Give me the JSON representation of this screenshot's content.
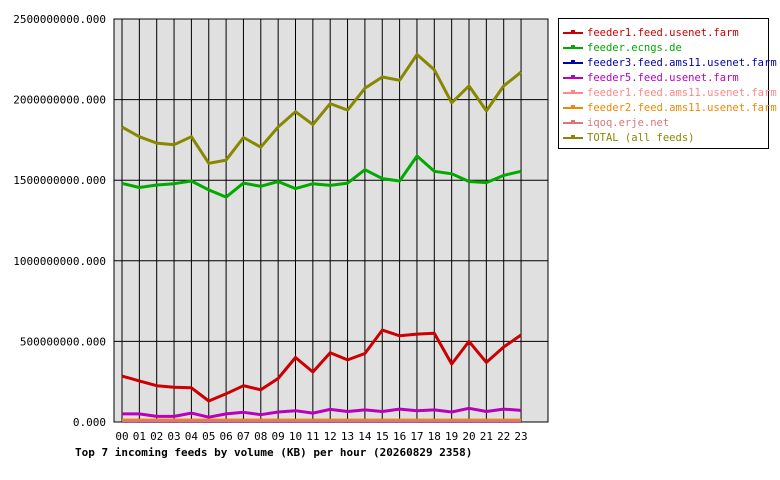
{
  "chart_data": {
    "type": "line",
    "title": "Top 7 incoming feeds by volume (KB) per hour (20260829 2358)",
    "xlabel": "",
    "ylabel": "",
    "categories": [
      "00",
      "01",
      "02",
      "03",
      "04",
      "05",
      "06",
      "07",
      "08",
      "09",
      "10",
      "11",
      "12",
      "13",
      "14",
      "15",
      "16",
      "17",
      "18",
      "19",
      "20",
      "21",
      "22",
      "23"
    ],
    "ylim": [
      0,
      2500000000
    ],
    "yticks": [
      "0.000",
      "500000000.000",
      "1000000000.000",
      "1500000000.000",
      "2000000000.000",
      "2500000000.000"
    ],
    "ytick_values": [
      0,
      500000000,
      1000000000,
      1500000000,
      2000000000,
      2500000000
    ],
    "grid": true,
    "legend_position": "right",
    "series": [
      {
        "name": "feeder1.feed.usenet.farm",
        "color": "#cc0000",
        "values": [
          285000000,
          255000000,
          225000000,
          215000000,
          212000000,
          130000000,
          175000000,
          225000000,
          200000000,
          270000000,
          400000000,
          310000000,
          430000000,
          385000000,
          425000000,
          570000000,
          535000000,
          545000000,
          550000000,
          360000000,
          500000000,
          370000000,
          465000000,
          540000000
        ]
      },
      {
        "name": "feeder.ecngs.de",
        "color": "#00aa00",
        "values": [
          1480000000,
          1455000000,
          1470000000,
          1478000000,
          1495000000,
          1440000000,
          1395000000,
          1482000000,
          1462000000,
          1492000000,
          1448000000,
          1478000000,
          1468000000,
          1482000000,
          1565000000,
          1510000000,
          1495000000,
          1650000000,
          1555000000,
          1540000000,
          1492000000,
          1485000000,
          1530000000,
          1555000000
        ]
      },
      {
        "name": "feeder3.feed.ams11.usenet.farm",
        "color": "#0000aa",
        "values": [
          3000000,
          3000000,
          3000000,
          3000000,
          3000000,
          3000000,
          3000000,
          3000000,
          3000000,
          3000000,
          3000000,
          3000000,
          3000000,
          3000000,
          3000000,
          3000000,
          3000000,
          3000000,
          3000000,
          3000000,
          3000000,
          3000000,
          3000000,
          3000000
        ]
      },
      {
        "name": "feeder5.feed.usenet.farm",
        "color": "#bb00bb",
        "values": [
          50000000,
          50000000,
          35000000,
          35000000,
          55000000,
          30000000,
          50000000,
          60000000,
          45000000,
          62000000,
          70000000,
          55000000,
          78000000,
          65000000,
          75000000,
          65000000,
          80000000,
          70000000,
          75000000,
          62000000,
          85000000,
          65000000,
          80000000,
          72000000
        ]
      },
      {
        "name": "feeder1.feed.ams11.usenet.farm",
        "color": "#ff8888",
        "values": [
          8000000,
          8000000,
          8000000,
          8000000,
          8000000,
          8000000,
          8000000,
          8000000,
          8000000,
          8000000,
          8000000,
          8000000,
          8000000,
          8000000,
          8000000,
          8000000,
          8000000,
          8000000,
          8000000,
          8000000,
          8000000,
          8000000,
          8000000,
          8000000
        ]
      },
      {
        "name": "feeder2.feed.ams11.usenet.farm",
        "color": "#ee8800",
        "values": [
          12000000,
          12000000,
          12000000,
          12000000,
          12000000,
          12000000,
          12000000,
          12000000,
          12000000,
          12000000,
          12000000,
          12000000,
          12000000,
          12000000,
          12000000,
          12000000,
          12000000,
          12000000,
          12000000,
          12000000,
          12000000,
          12000000,
          12000000,
          12000000
        ]
      },
      {
        "name": "iqoq.erje.net",
        "color": "#dd7777",
        "values": [
          5000000,
          5000000,
          5000000,
          5000000,
          5000000,
          5000000,
          5000000,
          5000000,
          5000000,
          5000000,
          5000000,
          5000000,
          5000000,
          5000000,
          5000000,
          5000000,
          5000000,
          5000000,
          5000000,
          5000000,
          5000000,
          5000000,
          5000000,
          5000000
        ]
      },
      {
        "name": "TOTAL (all feeds)",
        "color": "#888800",
        "values": [
          1830000000,
          1770000000,
          1730000000,
          1720000000,
          1770000000,
          1605000000,
          1625000000,
          1765000000,
          1705000000,
          1830000000,
          1925000000,
          1845000000,
          1975000000,
          1935000000,
          2070000000,
          2140000000,
          2120000000,
          2280000000,
          2185000000,
          1980000000,
          2085000000,
          1930000000,
          2085000000,
          2170000000
        ]
      }
    ]
  }
}
